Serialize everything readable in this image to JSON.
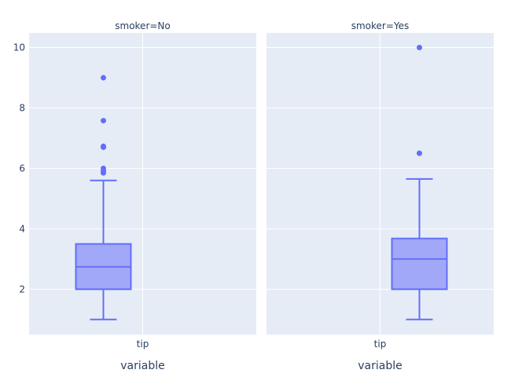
{
  "chart_data": {
    "type": "box",
    "xlabel": "variable",
    "facets": [
      {
        "title": "smoker=No",
        "category": "tip",
        "box": {
          "min": 1.0,
          "q1": 2.0,
          "median": 2.74,
          "q3": 3.5,
          "max": 5.6
        },
        "outliers": [
          5.85,
          5.92,
          6.0,
          6.7,
          6.73,
          7.58,
          9.0
        ]
      },
      {
        "title": "smoker=Yes",
        "category": "tip",
        "box": {
          "min": 1.0,
          "q1": 2.0,
          "median": 3.0,
          "q3": 3.68,
          "max": 5.65
        },
        "outliers": [
          6.5,
          10.0
        ]
      }
    ],
    "yticks": [
      2,
      4,
      6,
      8,
      10
    ],
    "ylim": [
      0.5,
      10.48
    ],
    "grid": true,
    "colors": {
      "box_line": "#636efa",
      "box_fill": "#a2a8f8",
      "plot_bg": "#e5ecf6",
      "grid": "#ffffff",
      "text": "#2a3f5f"
    }
  }
}
